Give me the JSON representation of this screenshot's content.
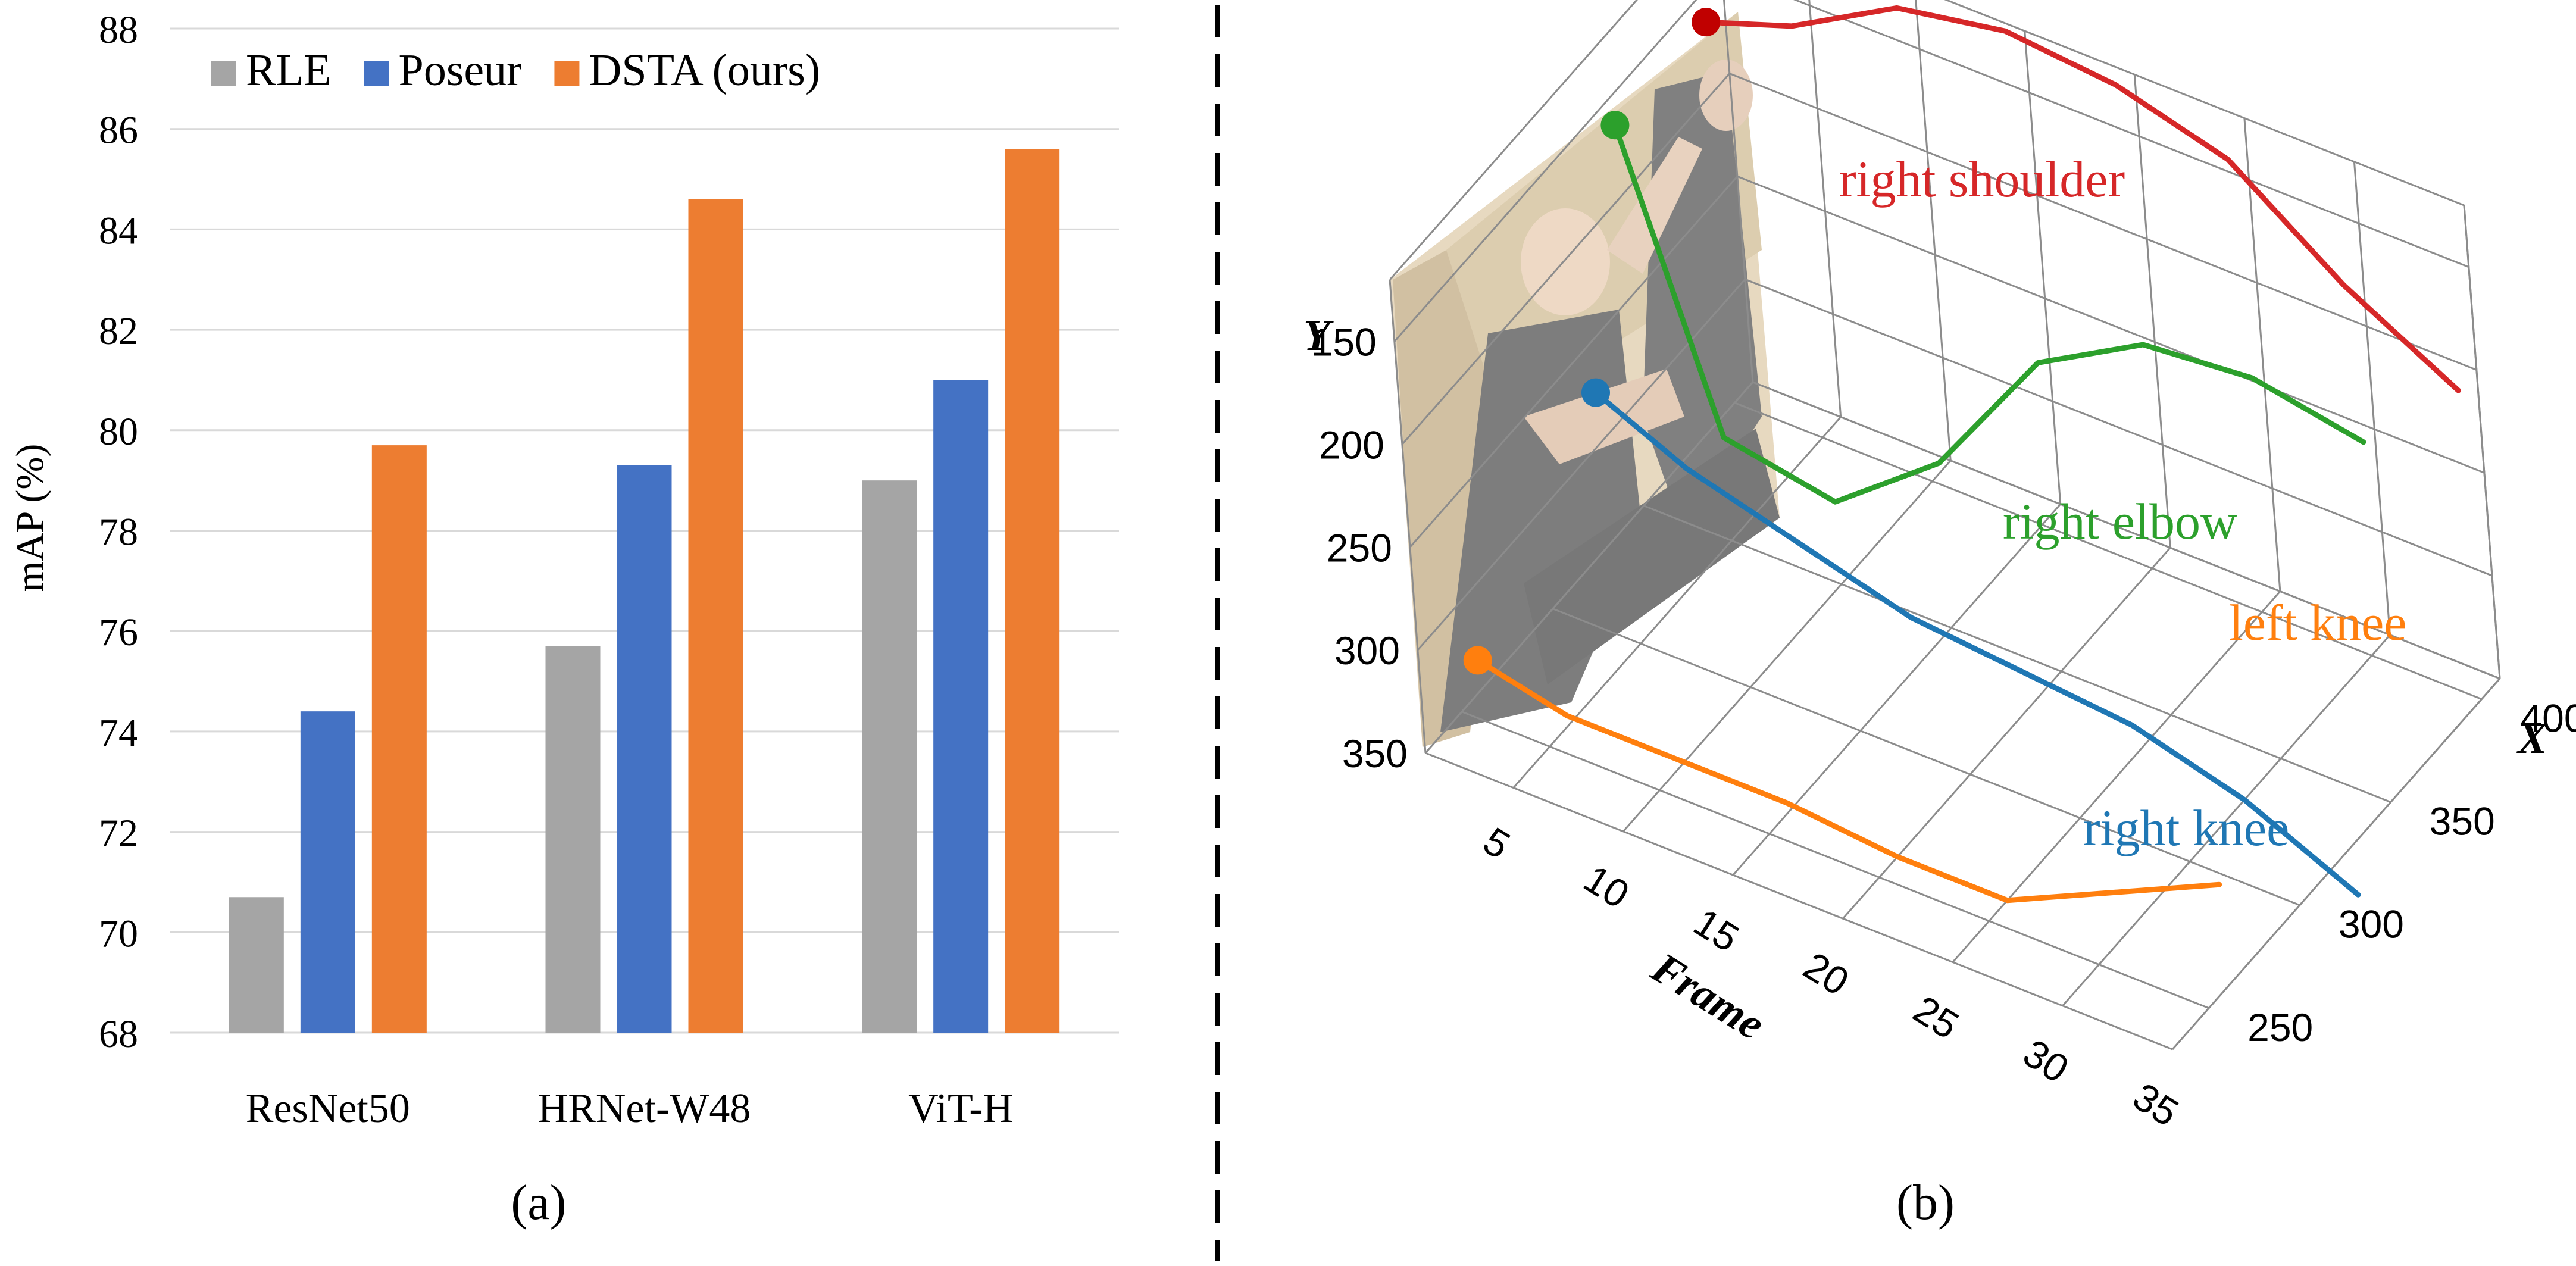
{
  "chart_data": [
    {
      "type": "bar",
      "panel_label": "(a)",
      "title": "",
      "xlabel": "",
      "ylabel": "mAP (%)",
      "ylim": [
        68,
        88
      ],
      "yticks": [
        "68",
        "70",
        "72",
        "74",
        "76",
        "78",
        "80",
        "82",
        "84",
        "86",
        "88"
      ],
      "grid": true,
      "legend_position": "top-left",
      "categories": [
        "ResNet50",
        "HRNet-W48",
        "ViT-H"
      ],
      "series": [
        {
          "name": "RLE",
          "color": "#a5a5a5",
          "values": [
            70.7,
            75.7,
            79.0
          ]
        },
        {
          "name": "Poseur",
          "color": "#4472c4",
          "values": [
            74.4,
            79.3,
            81.0
          ]
        },
        {
          "name": "DSTA (ours)",
          "color": "#ed7d31",
          "values": [
            79.7,
            84.6,
            85.6
          ]
        }
      ]
    },
    {
      "type": "line",
      "panel_label": "(b)",
      "projection": "3d",
      "axes": {
        "frame": {
          "label": "Frame",
          "ticks": [
            "5",
            "10",
            "15",
            "20",
            "25",
            "30",
            "35"
          ],
          "range": [
            1,
            35
          ]
        },
        "x": {
          "label": "X",
          "ticks": [
            "250",
            "300",
            "350",
            "400"
          ],
          "range": [
            230,
            410
          ]
        },
        "y": {
          "label": "Y",
          "ticks": [
            "150",
            "200",
            "250",
            "300",
            "350"
          ],
          "range": [
            120,
            350
          ]
        }
      },
      "grid": true,
      "series": [
        {
          "name": "right shoulder",
          "color": "#d62728",
          "start_color": "#c00000",
          "frames": [
            1,
            5,
            10,
            15,
            20,
            25,
            30,
            35
          ],
          "x": [
            400,
            400,
            400,
            400,
            400,
            400,
            400,
            400
          ],
          "y": [
            165,
            150,
            120,
            110,
            115,
            130,
            170,
            200
          ]
        },
        {
          "name": "right elbow",
          "color": "#2ca02c",
          "start_color": "#2ca02c",
          "frames": [
            1,
            5,
            10,
            15,
            20,
            25,
            30,
            35
          ],
          "x": [
            350,
            350,
            350,
            350,
            350,
            350,
            350,
            350
          ],
          "y": [
            165,
            300,
            310,
            270,
            200,
            170,
            165,
            175
          ]
        },
        {
          "name": "left knee",
          "color": "#ff7f0e",
          "start_color": "#ff7f0e",
          "frames": [
            1,
            5,
            10,
            15,
            20,
            25,
            30,
            35
          ],
          "x": [
            260,
            260,
            260,
            260,
            260,
            260,
            260,
            260
          ],
          "y": [
            335,
            345,
            345,
            345,
            350,
            350,
            325,
            300
          ]
        },
        {
          "name": "right knee",
          "color": "#1f77b4",
          "start_color": "#1f77b4",
          "frames": [
            1,
            5,
            10,
            15,
            20,
            25,
            30,
            35
          ],
          "x": [
            330,
            330,
            330,
            330,
            330,
            330,
            330,
            330
          ],
          "y": [
            275,
            295,
            310,
            325,
            330,
            335,
            350,
            375
          ]
        }
      ]
    }
  ]
}
